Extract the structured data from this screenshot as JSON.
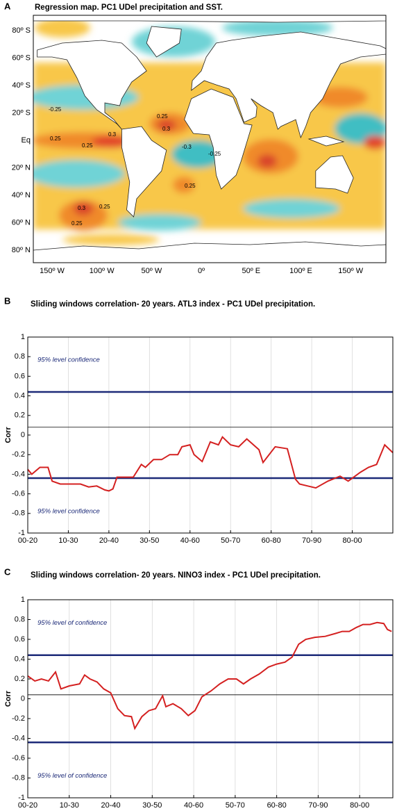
{
  "chart_data": [
    {
      "type": "map",
      "panel": "A",
      "title": "Regression map. PC1 UDel precipitation and SST.",
      "lat_labels": [
        "80º S",
        "60º S",
        "40º S",
        "20º S",
        "Eq",
        "20º N",
        "40º N",
        "60º N",
        "80º N"
      ],
      "lon_labels": [
        "150º W",
        "100º W",
        "50º W",
        "0º",
        "50º E",
        "100º E",
        "150º W"
      ],
      "contour_labels": [
        "-0.25",
        "0.25",
        "0.25",
        "0.3",
        "0.25",
        "0.3",
        "-0.3",
        "-0.25",
        "0.25",
        "0.3",
        "0.25",
        "0.25"
      ]
    },
    {
      "type": "line",
      "panel": "B",
      "title": "Sliding windows correlation- 20 years. ATL3 index - PC1 UDel precipitation.",
      "y_label": "Corr",
      "annotations": [
        "95% level confidence",
        "95% level confidence"
      ],
      "x": [
        0,
        1,
        3,
        5,
        6,
        8,
        10,
        13,
        15,
        17,
        19,
        20,
        21,
        22,
        24,
        26,
        28,
        29,
        31,
        33,
        35,
        37,
        38,
        40,
        41,
        43,
        45,
        47,
        48,
        50,
        52,
        54,
        57,
        58,
        61,
        64,
        66,
        67,
        69,
        71,
        74,
        77,
        79,
        82,
        84,
        86,
        88,
        90
      ],
      "values": [
        -0.35,
        -0.4,
        -0.33,
        -0.33,
        -0.47,
        -0.5,
        -0.5,
        -0.5,
        -0.53,
        -0.52,
        -0.56,
        -0.57,
        -0.55,
        -0.43,
        -0.43,
        -0.43,
        -0.3,
        -0.33,
        -0.25,
        -0.25,
        -0.2,
        -0.2,
        -0.12,
        -0.1,
        -0.2,
        -0.27,
        -0.07,
        -0.1,
        -0.02,
        -0.1,
        -0.12,
        -0.04,
        -0.15,
        -0.28,
        -0.12,
        -0.14,
        -0.45,
        -0.5,
        -0.52,
        -0.54,
        -0.47,
        -0.42,
        -0.47,
        -0.38,
        -0.33,
        -0.3,
        -0.1,
        -0.18
      ],
      "color": "#d42020",
      "reference_lines": [
        {
          "value": 0.44,
          "color": "#1c2a78"
        },
        {
          "value": -0.44,
          "color": "#1c2a78"
        },
        {
          "value": 0.08,
          "color": "#000000"
        }
      ],
      "xlim": [
        0,
        90
      ],
      "ylim": [
        -1,
        1
      ],
      "xticks": [
        {
          "value": 0,
          "label": "00-20"
        },
        {
          "value": 10,
          "label": "10-30"
        },
        {
          "value": 20,
          "label": "20-40"
        },
        {
          "value": 30,
          "label": "30-50"
        },
        {
          "value": 40,
          "label": "40-60"
        },
        {
          "value": 50,
          "label": "50-70"
        },
        {
          "value": 60,
          "label": "60-80"
        },
        {
          "value": 70,
          "label": "70-90"
        },
        {
          "value": 80,
          "label": "80-00"
        }
      ],
      "yticks": [
        -1,
        -0.8,
        -0.6,
        -0.4,
        -0.2,
        0,
        0.2,
        0.4,
        0.6,
        0.8,
        1
      ],
      "grid": true
    },
    {
      "type": "line",
      "panel": "C",
      "title": "Sliding windows correlation- 20 years. NINO3 index - PC1 UDel precipitation.",
      "y_label": "Corr",
      "annotations": [
        "95% level of confidence",
        "95% level of confidence"
      ],
      "x": [
        0,
        1.7,
        3.3,
        5,
        6.7,
        8,
        10,
        12.5,
        13.7,
        15,
        16.7,
        18.3,
        20,
        21.7,
        23.3,
        25,
        25.8,
        27.5,
        29.2,
        30.8,
        32.5,
        33.3,
        35,
        37,
        38.7,
        40.3,
        42,
        44.2,
        46.3,
        48.3,
        50.3,
        52,
        53.7,
        55.8,
        58,
        60,
        62,
        63.7,
        65.3,
        67,
        69.2,
        71.7,
        74.2,
        75.8,
        77.5,
        79.2,
        80.8,
        82.5,
        84.2,
        85.8,
        86.7,
        87.7
      ],
      "values": [
        0.23,
        0.18,
        0.2,
        0.18,
        0.27,
        0.1,
        0.13,
        0.15,
        0.24,
        0.2,
        0.17,
        0.1,
        0.06,
        -0.1,
        -0.17,
        -0.18,
        -0.3,
        -0.18,
        -0.12,
        -0.1,
        0.03,
        -0.08,
        -0.05,
        -0.1,
        -0.17,
        -0.12,
        0.02,
        0.08,
        0.15,
        0.2,
        0.2,
        0.15,
        0.2,
        0.25,
        0.32,
        0.35,
        0.37,
        0.42,
        0.55,
        0.6,
        0.62,
        0.63,
        0.66,
        0.68,
        0.68,
        0.72,
        0.75,
        0.75,
        0.77,
        0.76,
        0.7,
        0.68
      ],
      "color": "#d42020",
      "reference_lines": [
        {
          "value": 0.44,
          "color": "#1c2a78"
        },
        {
          "value": -0.44,
          "color": "#1c2a78"
        },
        {
          "value": 0.04,
          "color": "#000000"
        }
      ],
      "xlim": [
        0,
        88
      ],
      "ylim": [
        -1,
        1
      ],
      "xticks": [
        {
          "value": 0,
          "label": "00-20"
        },
        {
          "value": 10,
          "label": "10-30"
        },
        {
          "value": 20,
          "label": "20-40"
        },
        {
          "value": 30,
          "label": "30-50"
        },
        {
          "value": 40,
          "label": "40-60"
        },
        {
          "value": 50,
          "label": "50-70"
        },
        {
          "value": 60,
          "label": "60-80"
        },
        {
          "value": 70,
          "label": "70-90"
        },
        {
          "value": 80,
          "label": "80-00"
        }
      ],
      "yticks": [
        -1,
        -0.8,
        -0.6,
        -0.4,
        -0.2,
        0,
        0.2,
        0.4,
        0.6,
        0.8,
        1
      ],
      "grid": true
    }
  ]
}
